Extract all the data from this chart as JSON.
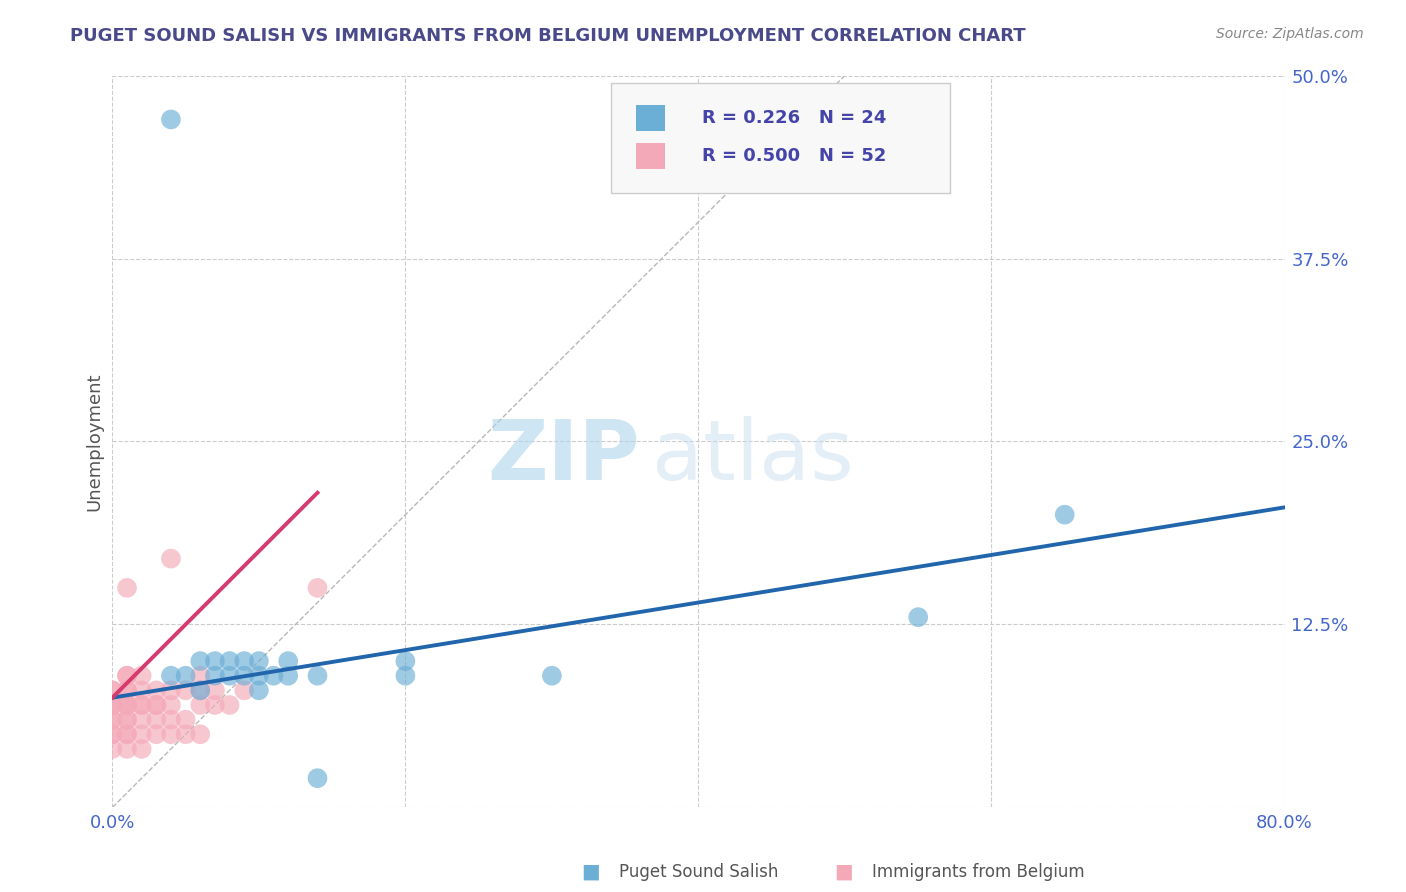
{
  "title": "PUGET SOUND SALISH VS IMMIGRANTS FROM BELGIUM UNEMPLOYMENT CORRELATION CHART",
  "source": "Source: ZipAtlas.com",
  "ylabel": "Unemployment",
  "xlim": [
    0,
    0.8
  ],
  "ylim": [
    0,
    0.5
  ],
  "xticks": [
    0.0,
    0.2,
    0.4,
    0.6,
    0.8
  ],
  "yticks": [
    0.0,
    0.125,
    0.25,
    0.375,
    0.5
  ],
  "xticklabels": [
    "0.0%",
    "",
    "",
    "",
    "80.0%"
  ],
  "yticklabels_right": [
    "50.0%",
    "37.5%",
    "25.0%",
    "12.5%",
    ""
  ],
  "legend_labels": [
    "Puget Sound Salish",
    "Immigrants from Belgium"
  ],
  "legend_r": [
    0.226,
    0.5
  ],
  "legend_n": [
    24,
    52
  ],
  "blue_color": "#6baed6",
  "pink_color": "#f4a9b8",
  "blue_line_color": "#2166ac",
  "pink_line_color": "#d63b6e",
  "ref_line_color": "#b8b8b8",
  "watermark_zip": "ZIP",
  "watermark_atlas": "atlas",
  "blue_scatter_x": [
    0.04,
    0.05,
    0.06,
    0.06,
    0.07,
    0.07,
    0.08,
    0.08,
    0.09,
    0.09,
    0.1,
    0.1,
    0.1,
    0.11,
    0.12,
    0.12,
    0.14,
    0.14,
    0.2,
    0.2,
    0.3,
    0.55,
    0.65,
    0.04
  ],
  "blue_scatter_y": [
    0.47,
    0.09,
    0.08,
    0.1,
    0.09,
    0.1,
    0.09,
    0.1,
    0.09,
    0.1,
    0.08,
    0.09,
    0.1,
    0.09,
    0.09,
    0.1,
    0.02,
    0.09,
    0.09,
    0.1,
    0.09,
    0.13,
    0.2,
    0.09
  ],
  "pink_scatter_x": [
    0.0,
    0.0,
    0.0,
    0.0,
    0.0,
    0.0,
    0.0,
    0.0,
    0.0,
    0.0,
    0.01,
    0.01,
    0.01,
    0.01,
    0.01,
    0.01,
    0.01,
    0.01,
    0.01,
    0.01,
    0.01,
    0.01,
    0.01,
    0.02,
    0.02,
    0.02,
    0.02,
    0.02,
    0.02,
    0.02,
    0.03,
    0.03,
    0.03,
    0.03,
    0.03,
    0.04,
    0.04,
    0.04,
    0.04,
    0.04,
    0.05,
    0.05,
    0.05,
    0.06,
    0.06,
    0.06,
    0.06,
    0.07,
    0.07,
    0.08,
    0.09,
    0.14
  ],
  "pink_scatter_y": [
    0.04,
    0.05,
    0.05,
    0.06,
    0.06,
    0.07,
    0.07,
    0.07,
    0.08,
    0.08,
    0.04,
    0.05,
    0.05,
    0.06,
    0.06,
    0.07,
    0.07,
    0.07,
    0.08,
    0.08,
    0.09,
    0.09,
    0.15,
    0.04,
    0.05,
    0.06,
    0.07,
    0.07,
    0.08,
    0.09,
    0.05,
    0.06,
    0.07,
    0.07,
    0.08,
    0.05,
    0.06,
    0.07,
    0.08,
    0.17,
    0.05,
    0.06,
    0.08,
    0.05,
    0.07,
    0.08,
    0.09,
    0.07,
    0.08,
    0.07,
    0.08,
    0.15
  ],
  "blue_line_x_start": 0.0,
  "blue_line_x_end": 0.8,
  "blue_line_y_start": 0.075,
  "blue_line_y_end": 0.205,
  "pink_line_x_start": 0.0,
  "pink_line_x_end": 0.14,
  "pink_line_y_start": 0.075,
  "pink_line_y_end": 0.215,
  "ref_line_x": [
    0.0,
    0.5
  ],
  "ref_line_y": [
    0.0,
    0.5
  ],
  "background_color": "#ffffff",
  "grid_color": "#cccccc",
  "title_color": "#4a4a8a",
  "axis_color": "#555555",
  "tick_color": "#4466cc",
  "legend_text_color": "#4444aa",
  "source_color": "#888888"
}
